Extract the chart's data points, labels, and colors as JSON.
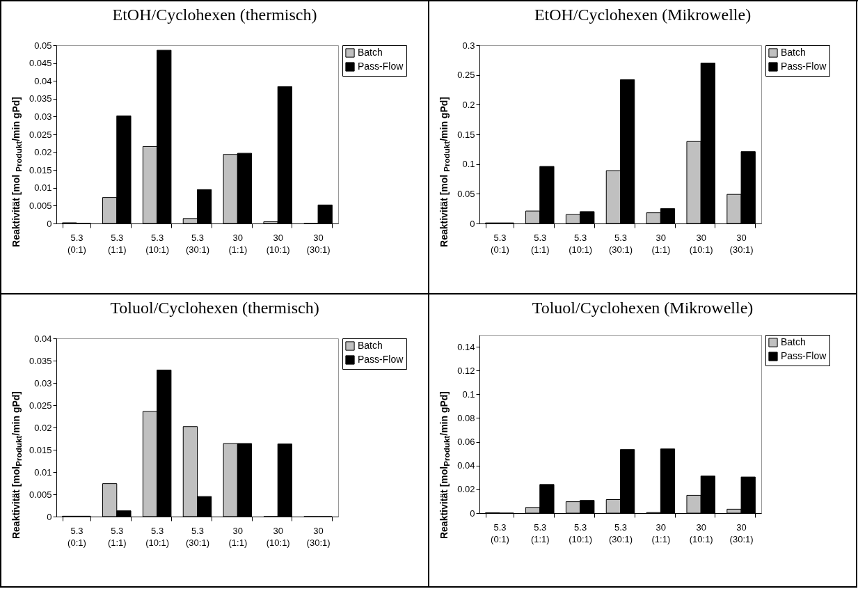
{
  "chart_data": [
    {
      "type": "bar",
      "title": "EtOH/Cyclohexen (thermisch)",
      "ylabel": "Reaktivität [mol $_{Produkt}$/min gPd]",
      "categories": [
        "5.3 (0:1)",
        "5.3 (1:1)",
        "5.3 (10:1)",
        "5.3 (30:1)",
        "30 (1:1)",
        "30 (10:1)",
        "30 (30:1)"
      ],
      "series": [
        {
          "name": "Batch",
          "color": "#c0c0c0",
          "values": [
            0.0002,
            0.0073,
            0.0216,
            0.0014,
            0.0194,
            0.0005,
            0
          ]
        },
        {
          "name": "Pass-Flow",
          "color": "#000000",
          "values": [
            0.0001,
            0.0302,
            0.0486,
            0.0095,
            0.0197,
            0.0384,
            0.0052
          ]
        }
      ],
      "ylim": [
        0,
        0.05
      ],
      "yticks": [
        0,
        0.005,
        0.01,
        0.015,
        0.02,
        0.025,
        0.03,
        0.035,
        0.04,
        0.045,
        0.05
      ],
      "legend": "top right",
      "grid": false
    },
    {
      "type": "bar",
      "title": "EtOH/Cyclohexen (Mikrowelle)",
      "ylabel": "Reaktivität [mol $_{Produkt}$/min gPd]",
      "categories": [
        "5.3 (0:1)",
        "5.3 (1:1)",
        "5.3 (10:1)",
        "5.3 (30:1)",
        "30 (1:1)",
        "30 (10:1)",
        "30 (30:1)"
      ],
      "series": [
        {
          "name": "Batch",
          "color": "#c0c0c0",
          "values": [
            0.001,
            0.021,
            0.015,
            0.089,
            0.018,
            0.138,
            0.049
          ]
        },
        {
          "name": "Pass-Flow",
          "color": "#000000",
          "values": [
            0.001,
            0.096,
            0.02,
            0.242,
            0.025,
            0.27,
            0.121
          ]
        }
      ],
      "ylim": [
        0,
        0.3
      ],
      "yticks": [
        0,
        0.05,
        0.1,
        0.15,
        0.2,
        0.25,
        0.3
      ],
      "legend": "top right",
      "grid": false
    },
    {
      "type": "bar",
      "title": "Toluol/Cyclohexen (thermisch)",
      "ylabel": "Reaktivität [mol$_{Produkt}$/min gPd]",
      "categories": [
        "5.3 (0:1)",
        "5.3 (1:1)",
        "5.3 (10:1)",
        "5.3 (30:1)",
        "30 (1:1)",
        "30 (10:1)",
        "30 (30:1)"
      ],
      "series": [
        {
          "name": "Batch",
          "color": "#c0c0c0",
          "values": [
            0.0001,
            0.0074,
            0.0236,
            0.0202,
            0.0164,
            0,
            0
          ]
        },
        {
          "name": "Pass-Flow",
          "color": "#000000",
          "values": [
            0.0001,
            0.0013,
            0.0329,
            0.0045,
            0.0164,
            0.0163,
            0
          ]
        }
      ],
      "ylim": [
        0,
        0.04
      ],
      "yticks": [
        0,
        0.005,
        0.01,
        0.015,
        0.02,
        0.025,
        0.03,
        0.035,
        0.04
      ],
      "legend": "top right",
      "grid": false
    },
    {
      "type": "bar",
      "title": "Toluol/Cyclohexen (Mikrowelle)",
      "ylabel": "Reaktivität [mol$_{Produkt}$/min gPd]",
      "categories": [
        "5.3 (0:1)",
        "5.3 (1:1)",
        "5.3 (10:1)",
        "5.3 (30:1)",
        "30 (1:1)",
        "30 (10:1)",
        "30 (30:1)"
      ],
      "series": [
        {
          "name": "Batch",
          "color": "#c0c0c0",
          "values": [
            0.0003,
            0.0048,
            0.0096,
            0.0114,
            0.0005,
            0.015,
            0.0033
          ]
        },
        {
          "name": "Pass-Flow",
          "color": "#000000",
          "values": [
            0,
            0.0241,
            0.0107,
            0.0535,
            0.054,
            0.0312,
            0.0304
          ]
        }
      ],
      "ylim": [
        0,
        0.15
      ],
      "yticks": [
        0,
        0.02,
        0.04,
        0.06,
        0.08,
        0.1,
        0.12,
        0.14
      ],
      "legend": "top right",
      "grid": false
    }
  ]
}
